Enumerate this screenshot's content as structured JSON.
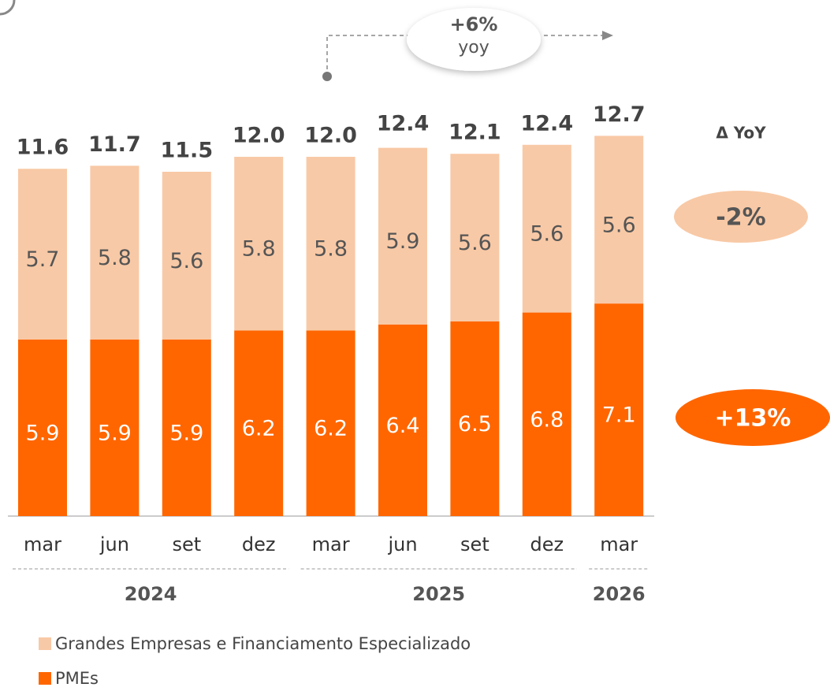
{
  "chart_data": {
    "type": "stacked_bar",
    "categories": [
      "mar",
      "jun",
      "set",
      "dez",
      "mar",
      "jun",
      "set",
      "dez",
      "mar"
    ],
    "series": [
      {
        "name": "PMEs",
        "color": "#ff6600",
        "values": [
          5.9,
          5.9,
          5.9,
          6.2,
          6.2,
          6.4,
          6.5,
          6.8,
          7.1
        ]
      },
      {
        "name": "Grandes Empresas e Financiamento Especializado",
        "color": "#f8c9a6",
        "values": [
          5.7,
          5.8,
          5.6,
          5.8,
          5.8,
          5.9,
          5.6,
          5.6,
          5.6
        ]
      }
    ],
    "totals": {
      "values": [
        11.6,
        11.7,
        11.5,
        12.0,
        12.0,
        12.4,
        12.1,
        12.4,
        12.7
      ],
      "value_labels": [
        "11.6",
        "11.7",
        "11.5",
        "12.0",
        "12.0",
        "12.4",
        "12.1",
        "12.4",
        "12.7"
      ]
    },
    "groups": [
      {
        "label": "2024",
        "from": 0,
        "to": 3
      },
      {
        "label": "2025",
        "from": 4,
        "to": 7
      },
      {
        "label": "2026",
        "from": 8,
        "to": 8
      }
    ],
    "annotations": {
      "growth": "+6%",
      "growth_unit": "yoy",
      "yoy_header": "Δ YoY",
      "series_yoy": [
        "+13%",
        "-2%"
      ]
    }
  }
}
